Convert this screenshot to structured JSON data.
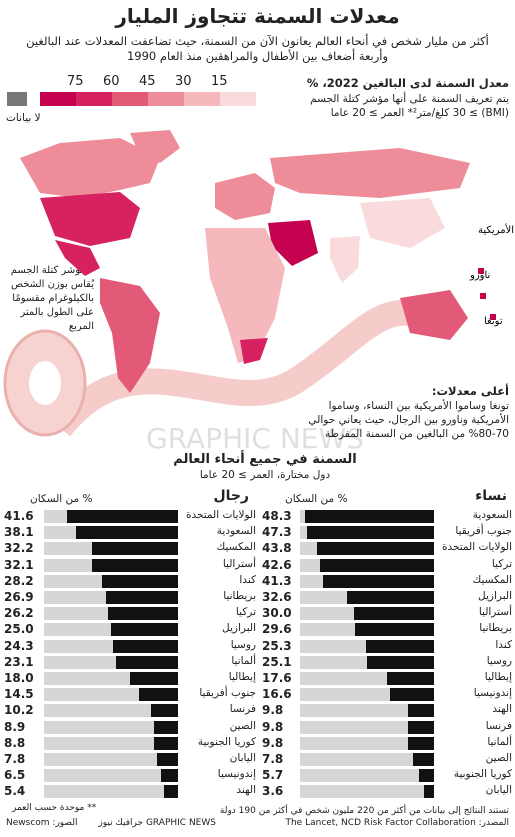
{
  "title": "معدلات السمنة تتجاوز المليار",
  "subtitle": "أكثر من مليار شخص في أنحاء العالم يعانون الآن من السمنة، حيث تضاعفت المعدلات عند البالغين وأربعة أضعاف بين الأطفال والمراهقين منذ العام 1990",
  "legend": {
    "ticks": [
      "75",
      "60",
      "45",
      "30",
      "15"
    ],
    "colors": [
      "#c4004f",
      "#d62261",
      "#e25a78",
      "#ee8d99",
      "#f5b8bd",
      "#f9dadd"
    ],
    "no_data_color": "#777777",
    "no_data_label": "لا بيانات"
  },
  "map": {
    "title": "معدل السمنة لدى البالغين 2022، %",
    "description": "يتم تعريف السمنة على أنها مؤشر كتلة الجسم (BMI) ≥ 30 كلغ/متر²* العمر ≥ 20 عاما",
    "bmi_note": "* مؤشر كتلة الجسم يُقاس بوزن الشخص بالكيلوغرام مقسومًا على الطول بالمتر المربع",
    "islands": [
      "ساموا الأمريكية",
      "ناورو",
      "تونغا"
    ],
    "highest_title": "أعلى معدلات:",
    "highest_text": "تونغا وساموا الأمريكية بين النساء، وساموا الأمريكية وناورو بين الرجال، حيث يعاني حوالي 70-80% من البالغين من السمنة المفرطة",
    "watermark": "GRAPHIC NEWS"
  },
  "world_section": {
    "title": "السمنة في جميع أنحاء العالم",
    "subtitle": "دول مختارة، العمر ≥ 20 عاما"
  },
  "chart_data": [
    {
      "type": "bar",
      "title": "نساء",
      "ylabel": "% من السكان",
      "ylim": [
        0,
        50
      ],
      "categories": [
        "السعودية",
        "جنوب أفريقيا",
        "الولايات المتحدة",
        "تركيا",
        "المكسيك",
        "البرازيل",
        "أستراليا",
        "بريطانيا",
        "كندا",
        "روسيا",
        "إيطاليا",
        "إندونيسيا",
        "الهند",
        "فرنسا",
        "ألمانيا",
        "الصين",
        "كوريا الجنوبية",
        "اليابان"
      ],
      "values": [
        48.3,
        47.3,
        43.8,
        42.6,
        41.3,
        32.6,
        30.0,
        29.6,
        25.3,
        25.1,
        17.6,
        16.6,
        9.8,
        9.8,
        9.8,
        7.8,
        5.7,
        3.6
      ],
      "labels": [
        "48.3",
        "47.3",
        "43.8",
        "42.6",
        "41.3",
        "32.6",
        "30.0",
        "29.6",
        "25.3",
        "25.1",
        "17.6",
        "16.6",
        "9.8",
        "9.8",
        "9.8",
        "7.8",
        "5.7",
        "3.6"
      ]
    },
    {
      "type": "bar",
      "title": "رجال",
      "ylabel": "% من السكان",
      "ylim": [
        0,
        50
      ],
      "categories": [
        "الولايات المتحدة",
        "السعودية",
        "المكسيك",
        "أستراليا",
        "كندا",
        "بريطانيا",
        "تركيا",
        "البرازيل",
        "روسيا",
        "ألمانيا",
        "إيطاليا",
        "جنوب أفريقيا",
        "فرنسا",
        "الصين",
        "كوريا الجنوبية",
        "اليابان",
        "إندونيسيا",
        "الهند"
      ],
      "values": [
        41.6,
        38.1,
        32.2,
        32.1,
        28.2,
        26.9,
        26.2,
        25.0,
        24.3,
        23.1,
        18.0,
        14.5,
        10.2,
        8.9,
        8.8,
        7.8,
        6.5,
        5.4
      ],
      "labels": [
        "41.6",
        "38.1",
        "32.2",
        "32.1",
        "28.2",
        "26.9",
        "26.2",
        "25.0",
        "24.3",
        "23.1",
        "18.0",
        "14.5",
        "10.2",
        "8.9",
        "8.8",
        "7.8",
        "6.5",
        "5.4"
      ]
    }
  ],
  "footer": {
    "note": "** موحدة حسب العمر",
    "sample": "تستند النتائج إلى بيانات من أكثر من 220 مليون شخص في أكثر من 190 دولة",
    "source": "المصدر: The Lancet, NCD Risk Factor Collaboration",
    "photo": "الصور: Newscom",
    "credit": "GRAPHIC NEWS جرافيك نيوز"
  }
}
